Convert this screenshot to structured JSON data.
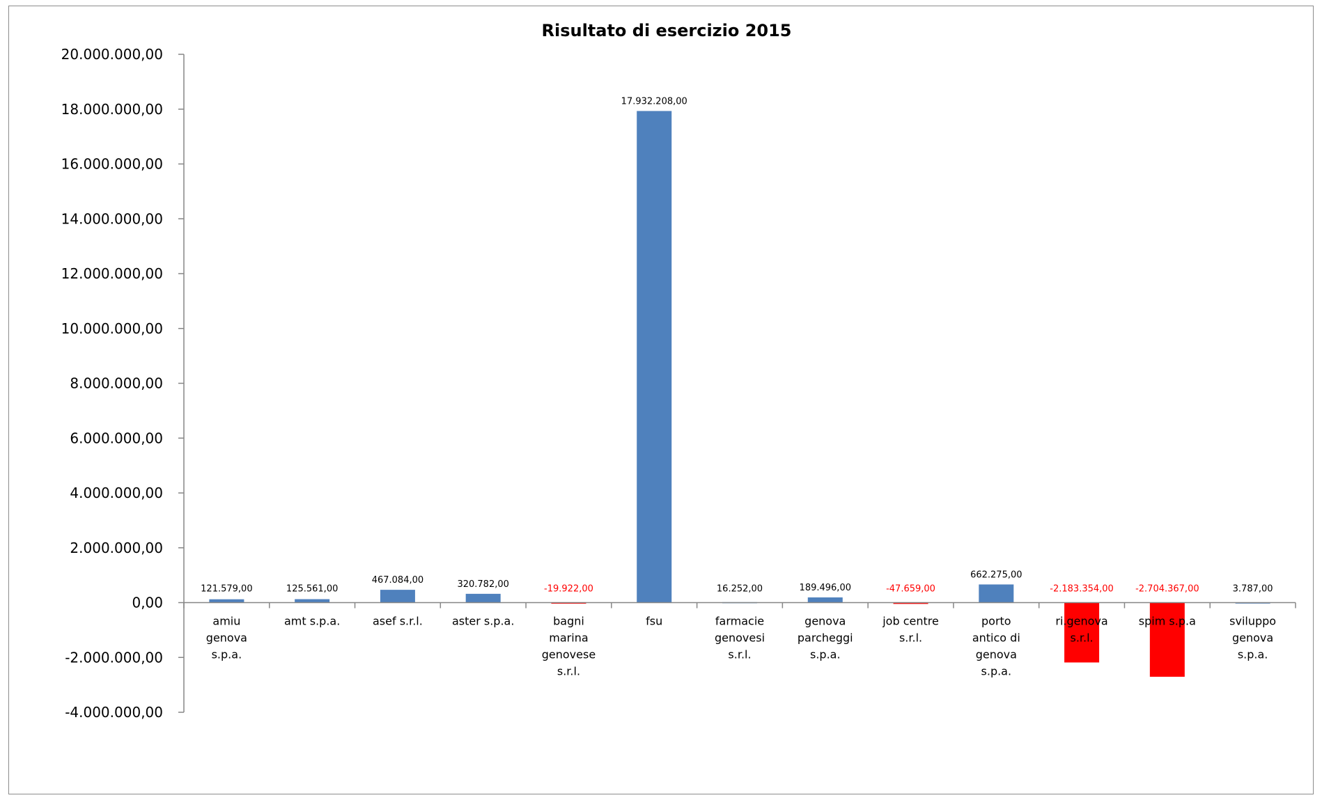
{
  "chart_data": {
    "type": "bar",
    "title": "Risultato di esercizio 2015",
    "xlabel": "",
    "ylabel": "",
    "ylim": [
      -4000000,
      20000000
    ],
    "yticks": [
      -4000000,
      -2000000,
      0,
      2000000,
      4000000,
      6000000,
      8000000,
      10000000,
      12000000,
      14000000,
      16000000,
      18000000,
      20000000
    ],
    "ytick_labels": [
      "-4.000.000,00",
      "-2.000.000,00",
      "0,00",
      "2.000.000,00",
      "4.000.000,00",
      "6.000.000,00",
      "8.000.000,00",
      "10.000.000,00",
      "12.000.000,00",
      "14.000.000,00",
      "16.000.000,00",
      "18.000.000,00",
      "20.000.000,00"
    ],
    "grid": false,
    "legend": "none",
    "categories": [
      [
        "amiu",
        "genova",
        "s.p.a."
      ],
      [
        "amt s.p.a."
      ],
      [
        "asef s.r.l."
      ],
      [
        "aster s.p.a."
      ],
      [
        "bagni",
        "marina",
        "genovese",
        "s.r.l."
      ],
      [
        "fsu"
      ],
      [
        "farmacie",
        "genovesi",
        "s.r.l."
      ],
      [
        "genova",
        "parcheggi",
        "s.p.a."
      ],
      [
        "job centre",
        "s.r.l."
      ],
      [
        "porto",
        "antico di",
        "genova",
        "s.p.a."
      ],
      [
        "ri.genova",
        "s.r.l."
      ],
      [
        "spim s.p.a"
      ],
      [
        "sviluppo",
        "genova",
        "s.p.a."
      ]
    ],
    "values": [
      121579,
      125561,
      467084,
      320782,
      -19922,
      17932208,
      16252,
      189496,
      -47659,
      662275,
      -2183354,
      -2704367,
      3787
    ],
    "data_labels": [
      "121.579,00",
      "125.561,00",
      "467.084,00",
      "320.782,00",
      "-19.922,00",
      "17.932.208,00",
      "16.252,00",
      "189.496,00",
      "-47.659,00",
      "662.275,00",
      "-2.183.354,00",
      "-2.704.367,00",
      "3.787,00"
    ],
    "colors": {
      "positive": "#4f81bd",
      "negative": "#ff0000",
      "positive_label": "#000000",
      "negative_label": "#ff0000",
      "axis": "#868686"
    }
  }
}
